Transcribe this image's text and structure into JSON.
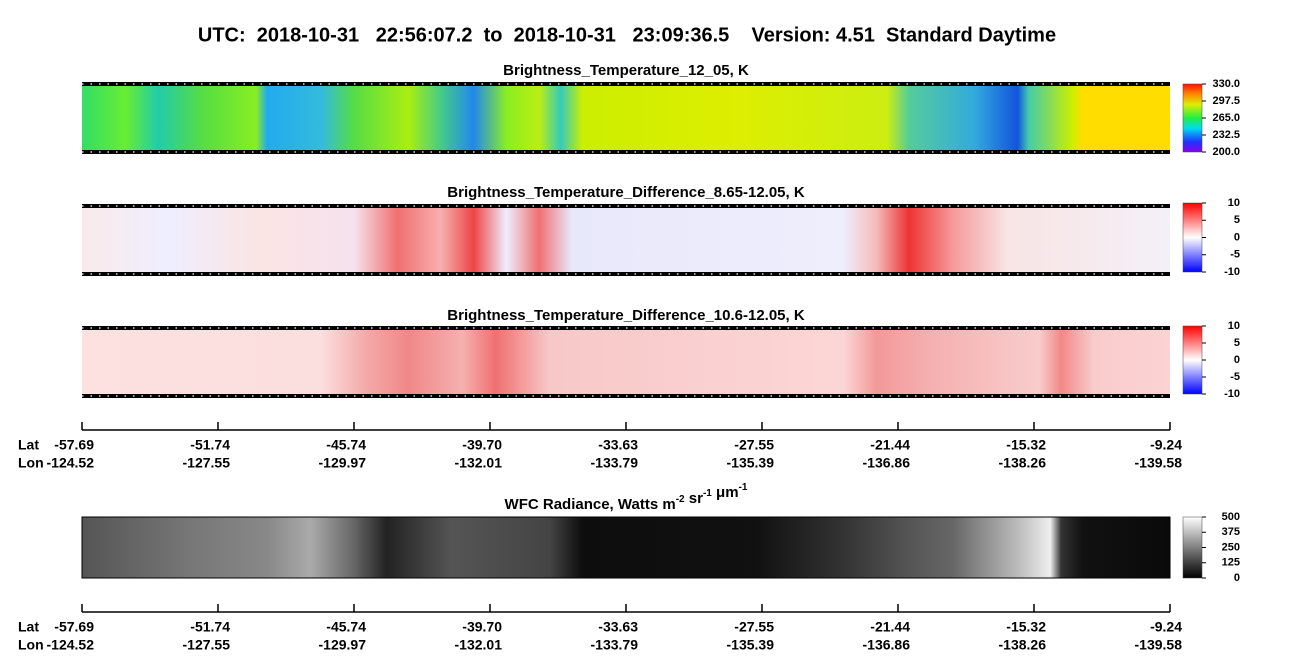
{
  "header": {
    "title": "UTC:  2018-10-31   22:56:07.2  to  2018-10-31   23:09:36.5    Version: 4.51  Standard Daytime"
  },
  "panels": [
    {
      "title": "Brightness_Temperature_12_05, K",
      "colorbar": [
        "330.0",
        "297.5",
        "265.0",
        "232.5",
        "200.0"
      ]
    },
    {
      "title": "Brightness_Temperature_Difference_8.65-12.05, K",
      "colorbar": [
        "10",
        "5",
        "0",
        "-5",
        "-10"
      ]
    },
    {
      "title": "Brightness_Temperature_Difference_10.6-12.05, K",
      "colorbar": [
        "10",
        "5",
        "0",
        "-5",
        "-10"
      ]
    },
    {
      "title": [
        "WFC Radiance, Watts m",
        " sr",
        " μm"
      ],
      "title_superscripts": [
        "-2",
        "-1",
        "-1"
      ],
      "colorbar": [
        "500",
        "375",
        "250",
        "125",
        "0"
      ]
    }
  ],
  "axes": [
    {
      "lat_label": "Lat",
      "lon_label": "Lon",
      "lat": [
        "-57.69",
        "-51.74",
        "-45.74",
        "-39.70",
        "-33.63",
        "-27.55",
        "-21.44",
        "-15.32",
        "-9.24"
      ],
      "lon": [
        "-124.52",
        "-127.55",
        "-129.97",
        "-132.01",
        "-133.79",
        "-135.39",
        "-136.86",
        "-138.26",
        "-139.58"
      ]
    },
    {
      "lat_label": "Lat",
      "lon_label": "Lon",
      "lat": [
        "-57.69",
        "-51.74",
        "-45.74",
        "-39.70",
        "-33.63",
        "-27.55",
        "-21.44",
        "-15.32",
        "-9.24"
      ],
      "lon": [
        "-124.52",
        "-127.55",
        "-129.97",
        "-132.01",
        "-133.79",
        "-135.39",
        "-136.86",
        "-138.26",
        "-139.58"
      ]
    }
  ]
}
